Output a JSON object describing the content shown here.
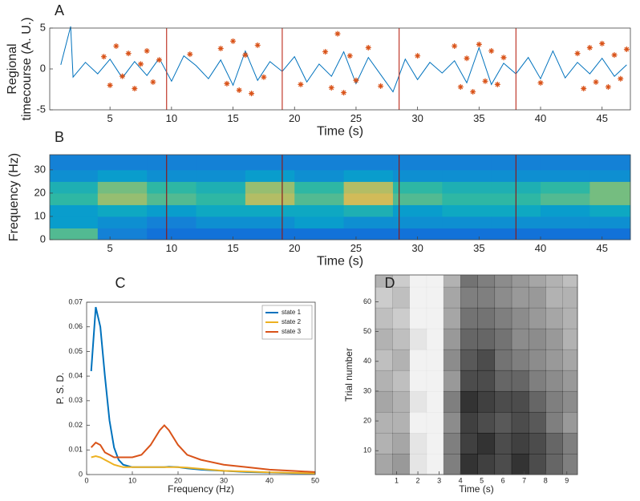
{
  "chart_data": [
    {
      "type": "line",
      "panel": "A",
      "ylabel": [
        "Regional",
        "timecourse (A. U.)"
      ],
      "xlabel": "Time (s)",
      "xlim": [
        0.1,
        47.3
      ],
      "ylim": [
        -5,
        5
      ],
      "xticks": [
        5,
        10,
        15,
        20,
        25,
        30,
        35,
        40,
        45
      ],
      "yticks": [
        -5,
        0,
        5
      ],
      "x": [
        1,
        1.8,
        2,
        3,
        4,
        5,
        6,
        7,
        8,
        9,
        10,
        11,
        12,
        13,
        14,
        15,
        16,
        17,
        18,
        19,
        20,
        21,
        22,
        23,
        24,
        25,
        26,
        27,
        28,
        29,
        30,
        31,
        32,
        33,
        34,
        35,
        36,
        37,
        38,
        39,
        40,
        41,
        42,
        43,
        44,
        45,
        46,
        47
      ],
      "values": [
        0.5,
        5.2,
        -1,
        0.8,
        -0.6,
        1.2,
        -1.1,
        0.9,
        -0.8,
        1.3,
        -1.5,
        1.6,
        0.4,
        -1.2,
        1.1,
        -2,
        2.2,
        -1.4,
        0.9,
        -0.3,
        1.5,
        -1.6,
        0.6,
        -0.9,
        2.1,
        -1.8,
        1.4,
        -0.7,
        -2.8,
        1.2,
        -1.3,
        0.8,
        -0.5,
        1.0,
        -1.7,
        2.6,
        -1.9,
        0.7,
        -0.6,
        1.4,
        -1.2,
        2.2,
        -1.1,
        0.8,
        -0.6,
        1.3,
        -0.9,
        0.5
      ],
      "color": "#0072bd",
      "points": {
        "color": "#d95319",
        "x": [
          4.5,
          5,
          5.5,
          6,
          6.5,
          7,
          7.5,
          8,
          8.5,
          9,
          14,
          14.5,
          15,
          15.5,
          16,
          16.5,
          17,
          17.5,
          22.5,
          23,
          23.5,
          24,
          24.5,
          25,
          26,
          27,
          33,
          33.5,
          34,
          34.5,
          35,
          35.5,
          36,
          36.5,
          37,
          43,
          43.5,
          44,
          44.5,
          45,
          45.5,
          46,
          46.5,
          47,
          11.5,
          20.5,
          30,
          40
        ],
        "y": [
          1.5,
          -2,
          2.8,
          -0.9,
          1.9,
          -2.4,
          0.6,
          2.2,
          -1.6,
          1.1,
          2.5,
          -1.8,
          3.4,
          -2.6,
          1.7,
          -3,
          2.9,
          -1,
          2.1,
          -2.3,
          4.3,
          -2.9,
          1.6,
          -1.4,
          2.6,
          -2.1,
          2.8,
          -2.2,
          1.3,
          -2.8,
          3,
          -1.5,
          2.2,
          -1.9,
          1.4,
          1.9,
          -2.4,
          2.6,
          -1.6,
          3.1,
          -2.2,
          1.7,
          -1.2,
          2.4,
          1.8,
          -1.9,
          1.6,
          -1.7
        ]
      },
      "vlines": [
        9.6,
        19,
        28.5,
        38
      ],
      "vline_color": "#c0392b"
    },
    {
      "type": "heatmap",
      "panel": "B",
      "ylabel": "Frequency (Hz)",
      "xlabel": "Time (s)",
      "xlim": [
        0.1,
        47.3
      ],
      "ylim": [
        0,
        36.5
      ],
      "xticks": [
        5,
        10,
        15,
        20,
        25,
        30,
        35,
        40,
        45
      ],
      "yticks": [
        0,
        10,
        20,
        30
      ],
      "xbins": [
        0.1,
        4,
        8,
        12,
        16,
        20,
        24,
        28,
        32,
        36,
        40,
        44,
        47.3
      ],
      "ybins": [
        0,
        5,
        10,
        15,
        20,
        25,
        30,
        36.5
      ],
      "zlim": [
        0,
        1
      ],
      "z": [
        [
          0.55,
          0.25,
          0.2,
          0.2,
          0.2,
          0.2,
          0.2,
          0.2,
          0.2,
          0.2,
          0.2,
          0.2
        ],
        [
          0.35,
          0.3,
          0.25,
          0.3,
          0.3,
          0.35,
          0.3,
          0.3,
          0.3,
          0.3,
          0.3,
          0.3
        ],
        [
          0.35,
          0.4,
          0.35,
          0.4,
          0.4,
          0.4,
          0.45,
          0.35,
          0.4,
          0.4,
          0.35,
          0.4
        ],
        [
          0.5,
          0.65,
          0.55,
          0.5,
          0.7,
          0.55,
          0.75,
          0.55,
          0.5,
          0.5,
          0.55,
          0.6
        ],
        [
          0.45,
          0.6,
          0.5,
          0.45,
          0.65,
          0.5,
          0.7,
          0.5,
          0.45,
          0.45,
          0.5,
          0.6
        ],
        [
          0.3,
          0.35,
          0.3,
          0.3,
          0.35,
          0.3,
          0.35,
          0.3,
          0.3,
          0.3,
          0.3,
          0.3
        ],
        [
          0.25,
          0.25,
          0.25,
          0.25,
          0.25,
          0.25,
          0.25,
          0.25,
          0.25,
          0.25,
          0.25,
          0.25
        ]
      ],
      "vlines": [
        9.6,
        19,
        28.5,
        38
      ],
      "vline_color": "#8b1a1a"
    },
    {
      "type": "multiline",
      "panel": "C",
      "ylabel": "P. S. D.",
      "xlabel": "Frequency (Hz)",
      "legend": "upper right",
      "xlim": [
        0,
        50
      ],
      "ylim": [
        0,
        0.07
      ],
      "xticks": [
        0,
        10,
        20,
        30,
        40,
        50
      ],
      "yticks": [
        0,
        0.01,
        0.02,
        0.03,
        0.04,
        0.05,
        0.06,
        0.07
      ],
      "x": [
        1,
        2,
        3,
        4,
        5,
        6,
        7,
        8,
        10,
        12,
        14,
        16,
        17,
        18,
        20,
        22,
        25,
        30,
        35,
        40,
        45,
        50
      ],
      "series": [
        {
          "name": "state 1",
          "color": "#0072bd",
          "values": [
            0.042,
            0.068,
            0.06,
            0.04,
            0.022,
            0.011,
            0.006,
            0.004,
            0.003,
            0.003,
            0.003,
            0.003,
            0.003,
            0.0032,
            0.003,
            0.0025,
            0.002,
            0.0015,
            0.001,
            0.0008,
            0.0006,
            0.0005
          ]
        },
        {
          "name": "state 2",
          "color": "#edb120",
          "values": [
            0.007,
            0.0075,
            0.007,
            0.006,
            0.005,
            0.004,
            0.0035,
            0.003,
            0.003,
            0.003,
            0.003,
            0.003,
            0.003,
            0.003,
            0.003,
            0.0028,
            0.0023,
            0.0015,
            0.0012,
            0.0009,
            0.0007,
            0.0005
          ]
        },
        {
          "name": "state 3",
          "color": "#d95319",
          "values": [
            0.011,
            0.013,
            0.012,
            0.009,
            0.008,
            0.007,
            0.007,
            0.007,
            0.007,
            0.008,
            0.012,
            0.018,
            0.02,
            0.018,
            0.012,
            0.008,
            0.006,
            0.004,
            0.003,
            0.002,
            0.0015,
            0.001
          ]
        }
      ]
    },
    {
      "type": "raster",
      "panel": "D",
      "ylabel": "Trial number",
      "xlabel": "Time (s)",
      "xlim": [
        0,
        9.5
      ],
      "ylim": [
        2,
        69
      ],
      "xticks": [
        1,
        2,
        3,
        4,
        5,
        6,
        7,
        8,
        9
      ],
      "yticks": [
        10,
        20,
        30,
        40,
        50,
        60
      ],
      "xbins": [
        0,
        0.8,
        1.6,
        2.4,
        3.2,
        4,
        4.8,
        5.6,
        6.4,
        7.2,
        8,
        8.8,
        9.5
      ],
      "ybins": [
        2,
        9,
        16,
        23,
        30,
        37,
        44,
        51,
        58,
        65,
        69
      ],
      "z": [
        [
          0.35,
          0.4,
          0.1,
          0.05,
          0.5,
          0.8,
          0.75,
          0.7,
          0.8,
          0.7,
          0.6,
          0.5
        ],
        [
          0.3,
          0.35,
          0.1,
          0.05,
          0.5,
          0.75,
          0.8,
          0.7,
          0.75,
          0.7,
          0.6,
          0.5
        ],
        [
          0.3,
          0.3,
          0.05,
          0.05,
          0.45,
          0.75,
          0.7,
          0.65,
          0.7,
          0.65,
          0.5,
          0.4
        ],
        [
          0.35,
          0.3,
          0.1,
          0.05,
          0.5,
          0.8,
          0.75,
          0.7,
          0.7,
          0.6,
          0.5,
          0.45
        ],
        [
          0.3,
          0.25,
          0.05,
          0.05,
          0.4,
          0.7,
          0.7,
          0.6,
          0.6,
          0.5,
          0.45,
          0.4
        ],
        [
          0.25,
          0.3,
          0.05,
          0.05,
          0.45,
          0.65,
          0.7,
          0.55,
          0.5,
          0.45,
          0.4,
          0.35
        ],
        [
          0.3,
          0.25,
          0.1,
          0.05,
          0.4,
          0.6,
          0.6,
          0.55,
          0.45,
          0.45,
          0.4,
          0.3
        ],
        [
          0.25,
          0.2,
          0.05,
          0.05,
          0.35,
          0.55,
          0.55,
          0.5,
          0.45,
          0.4,
          0.35,
          0.3
        ],
        [
          0.2,
          0.25,
          0.05,
          0.05,
          0.35,
          0.5,
          0.5,
          0.45,
          0.4,
          0.4,
          0.3,
          0.3
        ],
        [
          0.3,
          0.2,
          0.05,
          0.05,
          0.3,
          0.55,
          0.5,
          0.45,
          0.4,
          0.35,
          0.3,
          0.25
        ]
      ]
    }
  ]
}
